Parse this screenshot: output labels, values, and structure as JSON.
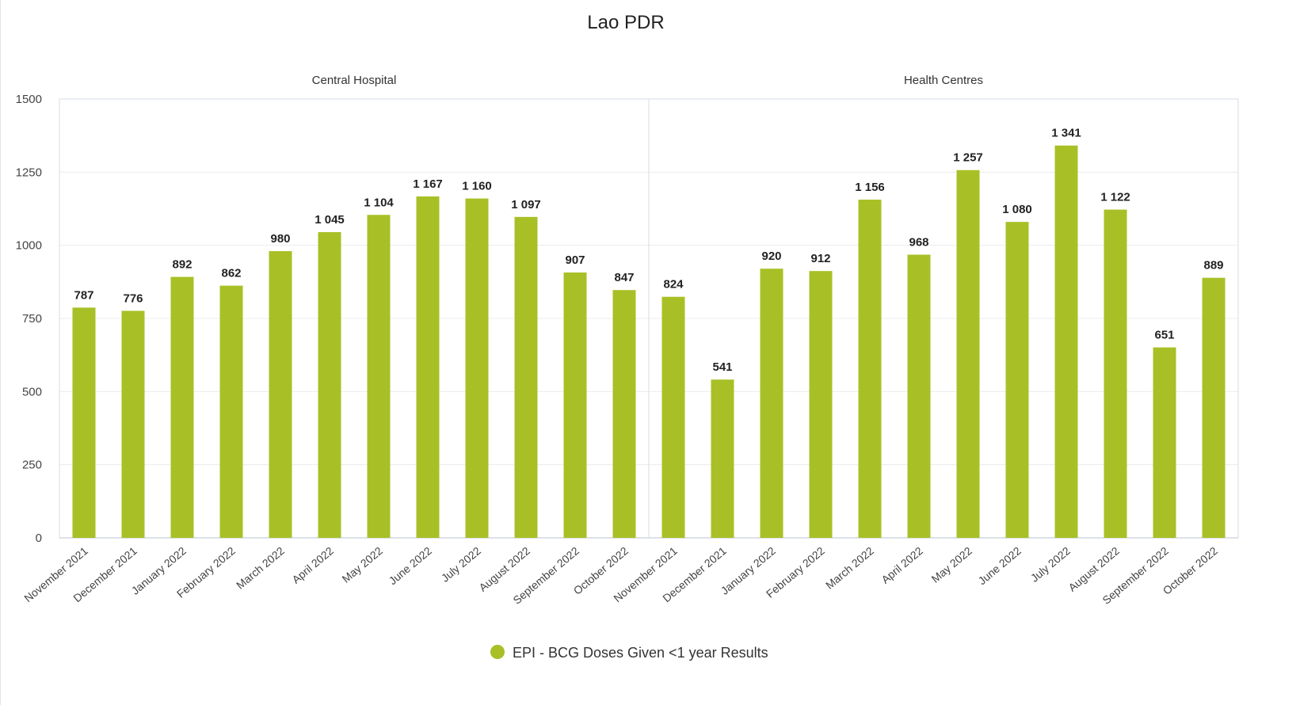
{
  "chart_data": {
    "type": "bar",
    "title": "Lao PDR",
    "ylim": [
      0,
      1500
    ],
    "yticks": [
      0,
      250,
      500,
      750,
      1000,
      1250,
      1500
    ],
    "grid": true,
    "legend_position": "bottom-center",
    "series_color": "#a8c026",
    "categories": [
      "November 2021",
      "December 2021",
      "January 2022",
      "February 2022",
      "March 2022",
      "April 2022",
      "May 2022",
      "June 2022",
      "July 2022",
      "August 2022",
      "September 2022",
      "October 2022"
    ],
    "series": [
      {
        "name": "EPI - BCG Doses Given <1 year Results"
      }
    ],
    "panels": [
      {
        "title": "Central Hospital",
        "values": [
          787,
          776,
          892,
          862,
          980,
          1045,
          1104,
          1167,
          1160,
          1097,
          907,
          847
        ],
        "value_labels": [
          "787",
          "776",
          "892",
          "862",
          "980",
          "1 045",
          "1 104",
          "1 167",
          "1 160",
          "1 097",
          "907",
          "847"
        ]
      },
      {
        "title": "Health Centres",
        "values": [
          824,
          541,
          920,
          912,
          1156,
          968,
          1257,
          1080,
          1341,
          1122,
          651,
          889
        ],
        "value_labels": [
          "824",
          "541",
          "920",
          "912",
          "1 156",
          "968",
          "1 257",
          "1 080",
          "1 341",
          "1 122",
          "651",
          "889"
        ]
      }
    ]
  }
}
